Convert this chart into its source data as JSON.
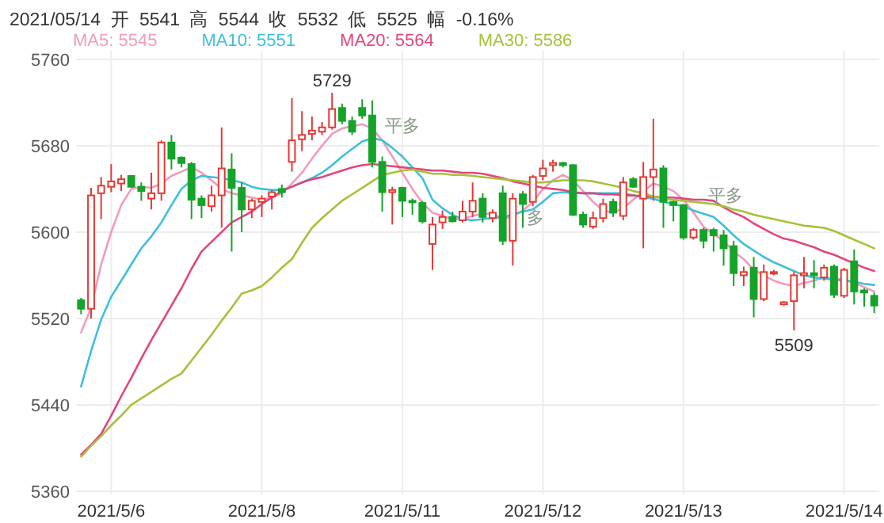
{
  "chart_data": {
    "type": "candlestick",
    "title": "2021/05/14 开 5541 高 5544 收 5532 低 5525 幅 -0.16%",
    "categories": [
      null,
      null,
      null,
      "2021/5/6",
      null,
      null,
      null,
      null,
      null,
      null,
      null,
      null,
      null,
      null,
      null,
      null,
      null,
      null,
      "2021/5/8",
      null,
      null,
      null,
      null,
      null,
      null,
      null,
      null,
      null,
      null,
      null,
      null,
      null,
      "2021/5/11",
      null,
      null,
      null,
      null,
      null,
      null,
      null,
      null,
      null,
      null,
      null,
      null,
      null,
      "2021/5/12",
      null,
      null,
      null,
      null,
      null,
      null,
      null,
      null,
      null,
      null,
      null,
      null,
      null,
      "2021/5/13",
      null,
      null,
      null,
      null,
      null,
      null,
      null,
      null,
      null,
      null,
      null,
      null,
      null,
      null,
      null,
      "2021/5/14",
      null,
      null,
      null
    ],
    "ohlc": [
      [
        5537,
        5539,
        5524,
        5529
      ],
      [
        5529,
        5641,
        5520,
        5634
      ],
      [
        5636,
        5651,
        5612,
        5643
      ],
      [
        5642,
        5663,
        5637,
        5647
      ],
      [
        5645,
        5653,
        5638,
        5649
      ],
      [
        5652,
        5653,
        5641,
        5642
      ],
      [
        5642,
        5646,
        5629,
        5638
      ],
      [
        5631,
        5655,
        5621,
        5636
      ],
      [
        5636,
        5685,
        5629,
        5683
      ],
      [
        5683,
        5690,
        5658,
        5668
      ],
      [
        5669,
        5670,
        5660,
        5664
      ],
      [
        5663,
        5665,
        5612,
        5630
      ],
      [
        5631,
        5634,
        5613,
        5625
      ],
      [
        5624,
        5643,
        5619,
        5634
      ],
      [
        5634,
        5697,
        5604,
        5659
      ],
      [
        5658,
        5673,
        5582,
        5641
      ],
      [
        5641,
        5646,
        5600,
        5621
      ],
      [
        5621,
        5631,
        5613,
        5629
      ],
      [
        5628,
        5634,
        5614,
        5631
      ],
      [
        5633,
        5639,
        5621,
        5637
      ],
      [
        5640,
        5644,
        5632,
        5637
      ],
      [
        5665,
        5724,
        5656,
        5685
      ],
      [
        5686,
        5712,
        5675,
        5690
      ],
      [
        5691,
        5707,
        5685,
        5694
      ],
      [
        5693,
        5702,
        5690,
        5697
      ],
      [
        5697,
        5729,
        5695,
        5714
      ],
      [
        5715,
        5719,
        5700,
        5703
      ],
      [
        5703,
        5707,
        5690,
        5693
      ],
      [
        5715,
        5723,
        5705,
        5708
      ],
      [
        5708,
        5722,
        5660,
        5665
      ],
      [
        5665,
        5670,
        5619,
        5637
      ],
      [
        5637,
        5642,
        5607,
        5639
      ],
      [
        5641,
        5642,
        5614,
        5629
      ],
      [
        5629,
        5631,
        5616,
        5628
      ],
      [
        5627,
        5629,
        5608,
        5610
      ],
      [
        5589,
        5614,
        5565,
        5607
      ],
      [
        5609,
        5620,
        5603,
        5614
      ],
      [
        5614,
        5619,
        5609,
        5610
      ],
      [
        5611,
        5629,
        5609,
        5619
      ],
      [
        5619,
        5646,
        5614,
        5629
      ],
      [
        5631,
        5636,
        5609,
        5614
      ],
      [
        5613,
        5621,
        5609,
        5618
      ],
      [
        5636,
        5643,
        5588,
        5592
      ],
      [
        5592,
        5636,
        5569,
        5631
      ],
      [
        5635,
        5638,
        5604,
        5626
      ],
      [
        5628,
        5653,
        5624,
        5651
      ],
      [
        5652,
        5667,
        5648,
        5659
      ],
      [
        5662,
        5667,
        5656,
        5664
      ],
      [
        5664,
        5665,
        5660,
        5662
      ],
      [
        5662,
        5663,
        5615,
        5616
      ],
      [
        5616,
        5619,
        5604,
        5607
      ],
      [
        5605,
        5619,
        5603,
        5613
      ],
      [
        5613,
        5631,
        5609,
        5626
      ],
      [
        5628,
        5631,
        5614,
        5618
      ],
      [
        5615,
        5651,
        5611,
        5646
      ],
      [
        5649,
        5651,
        5641,
        5642
      ],
      [
        5631,
        5665,
        5585,
        5651
      ],
      [
        5651,
        5705,
        5629,
        5658
      ],
      [
        5659,
        5662,
        5604,
        5628
      ],
      [
        5628,
        5629,
        5610,
        5625
      ],
      [
        5625,
        5626,
        5593,
        5595
      ],
      [
        5595,
        5604,
        5593,
        5602
      ],
      [
        5602,
        5604,
        5585,
        5592
      ],
      [
        5602,
        5604,
        5582,
        5597
      ],
      [
        5597,
        5602,
        5569,
        5585
      ],
      [
        5587,
        5592,
        5550,
        5562
      ],
      [
        5560,
        5568,
        5550,
        5563
      ],
      [
        5567,
        5577,
        5521,
        5538
      ],
      [
        5538,
        5570,
        5536,
        5563
      ],
      [
        5562,
        5565,
        5560,
        5563
      ],
      [
        5533,
        5536,
        5532,
        5535
      ],
      [
        5536,
        5563,
        5509,
        5560
      ],
      [
        5560,
        5577,
        5548,
        5562
      ],
      [
        5562,
        5574,
        5548,
        5560
      ],
      [
        5558,
        5570,
        5555,
        5567
      ],
      [
        5568,
        5570,
        5539,
        5542
      ],
      [
        5541,
        5567,
        5539,
        5565
      ],
      [
        5573,
        5584,
        5533,
        5545
      ],
      [
        5546,
        5548,
        5531,
        5544
      ],
      [
        5541,
        5544,
        5525,
        5532
      ]
    ],
    "series": [
      {
        "name": "MA5: 5545",
        "type": "line",
        "color": "#f29bbb",
        "values": [
          5507,
          5530,
          5570,
          5600,
          5625,
          5640,
          5642,
          5641,
          5645,
          5652,
          5656,
          5660,
          5655,
          5648,
          5640,
          5636,
          5634,
          5632,
          5630,
          5632,
          5636,
          5645,
          5655,
          5668,
          5680,
          5691,
          5696,
          5698,
          5700,
          5696,
          5685,
          5670,
          5655,
          5640,
          5627,
          5618,
          5615,
          5612,
          5612,
          5615,
          5617,
          5617,
          5612,
          5615,
          5620,
          5628,
          5640,
          5648,
          5653,
          5648,
          5638,
          5628,
          5620,
          5618,
          5622,
          5630,
          5638,
          5645,
          5642,
          5638,
          5630,
          5618,
          5605,
          5598,
          5592,
          5582,
          5575,
          5565,
          5560,
          5555,
          5552,
          5550,
          5553,
          5555,
          5558,
          5557,
          5556,
          5553,
          5549,
          5545
        ]
      },
      {
        "name": "MA10: 5551",
        "type": "line",
        "color": "#3fbfdc",
        "values": [
          5457,
          5490,
          5519,
          5540,
          5555,
          5570,
          5585,
          5596,
          5609,
          5625,
          5640,
          5648,
          5652,
          5651,
          5650,
          5648,
          5646,
          5642,
          5640,
          5639,
          5639,
          5642,
          5646,
          5650,
          5655,
          5662,
          5670,
          5677,
          5684,
          5687,
          5685,
          5678,
          5670,
          5660,
          5650,
          5630,
          5622,
          5616,
          5612,
          5611,
          5612,
          5613,
          5614,
          5616,
          5619,
          5621,
          5628,
          5636,
          5637,
          5636,
          5636,
          5636,
          5636,
          5636,
          5636,
          5634,
          5632,
          5631,
          5628,
          5626,
          5624,
          5620,
          5617,
          5614,
          5606,
          5597,
          5589,
          5583,
          5577,
          5572,
          5568,
          5564,
          5560,
          5558,
          5557,
          5556,
          5555,
          5554,
          5552,
          5551
        ]
      },
      {
        "name": "MA20: 5564",
        "type": "line",
        "color": "#e2457f",
        "values": [
          5394,
          5403,
          5413,
          5430,
          5448,
          5465,
          5483,
          5500,
          5516,
          5532,
          5548,
          5566,
          5582,
          5591,
          5600,
          5609,
          5614,
          5619,
          5626,
          5632,
          5638,
          5642,
          5646,
          5649,
          5651,
          5654,
          5657,
          5660,
          5662,
          5663,
          5662,
          5661,
          5660,
          5659,
          5658,
          5657,
          5657,
          5656,
          5655,
          5655,
          5654,
          5652,
          5650,
          5647,
          5645,
          5643,
          5641,
          5640,
          5639,
          5637,
          5636,
          5636,
          5635,
          5635,
          5634,
          5634,
          5633,
          5633,
          5632,
          5632,
          5631,
          5630,
          5630,
          5629,
          5623,
          5618,
          5614,
          5608,
          5603,
          5598,
          5594,
          5592,
          5589,
          5586,
          5582,
          5579,
          5575,
          5571,
          5567,
          5564
        ]
      },
      {
        "name": "MA30: 5586",
        "type": "line",
        "color": "#a5c23a",
        "values": [
          5392,
          5402,
          5411,
          5421,
          5430,
          5440,
          5446,
          5452,
          5458,
          5464,
          5469,
          5481,
          5493,
          5505,
          5518,
          5530,
          5543,
          5546,
          5550,
          5558,
          5567,
          5575,
          5590,
          5604,
          5613,
          5621,
          5629,
          5635,
          5641,
          5647,
          5653,
          5655,
          5657,
          5658,
          5656,
          5654,
          5654,
          5653,
          5653,
          5652,
          5651,
          5650,
          5649,
          5648,
          5647,
          5646,
          5646,
          5647,
          5648,
          5648,
          5648,
          5647,
          5645,
          5643,
          5641,
          5638,
          5636,
          5633,
          5631,
          5630,
          5629,
          5628,
          5627,
          5626,
          5624,
          5621,
          5619,
          5616,
          5614,
          5612,
          5610,
          5608,
          5606,
          5605,
          5604,
          5601,
          5597,
          5593,
          5589,
          5585
        ]
      }
    ],
    "ylim": [
      5357,
      5768
    ],
    "yticks": [
      5360,
      5440,
      5520,
      5600,
      5680,
      5760
    ],
    "grid": true,
    "legend": "top",
    "annotations": [
      {
        "text": "5729",
        "y": 5729
      },
      {
        "text": "5509",
        "y": 5509
      },
      "平多",
      "多",
      "平多"
    ]
  }
}
